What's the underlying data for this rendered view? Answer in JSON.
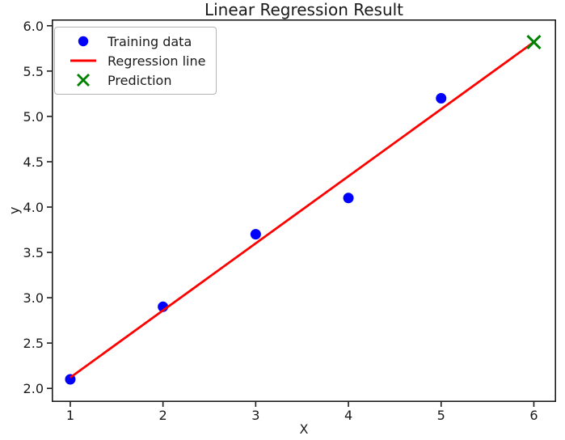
{
  "figure": {
    "background": "#ffffff",
    "axis_color": "#1c1c1c",
    "text_color": "#1a1a1a"
  },
  "chart_data": {
    "type": "scatter",
    "title": "Linear Regression Result",
    "xlabel": "X",
    "ylabel": "y",
    "xlim": [
      0.8,
      6.24
    ],
    "ylim": [
      1.85,
      6.07
    ],
    "xticks": [
      1,
      2,
      3,
      4,
      5,
      6
    ],
    "yticks": [
      2.0,
      2.5,
      3.0,
      3.5,
      4.0,
      4.5,
      5.0,
      5.5,
      6.0
    ],
    "grid": false,
    "legend_position": "upper left",
    "series": [
      {
        "name": "Training data",
        "type": "scatter",
        "marker": "circle",
        "color": "#0000ff",
        "x": [
          1,
          2,
          3,
          4,
          5
        ],
        "y": [
          2.1,
          2.9,
          3.7,
          4.1,
          5.2
        ]
      },
      {
        "name": "Regression line",
        "type": "line",
        "color": "#ff0000",
        "x": [
          1,
          6
        ],
        "y": [
          2.12,
          5.82
        ]
      },
      {
        "name": "Prediction",
        "type": "scatter",
        "marker": "x",
        "color": "#008000",
        "x": [
          6
        ],
        "y": [
          5.82
        ]
      }
    ]
  }
}
